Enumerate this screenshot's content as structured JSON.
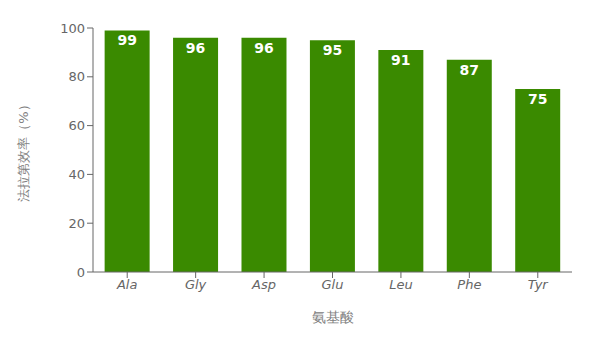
{
  "chart_data": {
    "type": "bar",
    "categories": [
      "Ala",
      "Gly",
      "Asp",
      "Glu",
      "Leu",
      "Phe",
      "Tyr"
    ],
    "values": [
      99,
      96,
      96,
      95,
      91,
      87,
      75
    ],
    "color": "#3a8a00",
    "xlabel": "氨基酸",
    "ylabel": "法拉第效率（%）",
    "ylim": [
      0,
      100
    ],
    "yticks": [
      0,
      20,
      40,
      60,
      80,
      100
    ],
    "grid": false,
    "data_labels": true
  }
}
